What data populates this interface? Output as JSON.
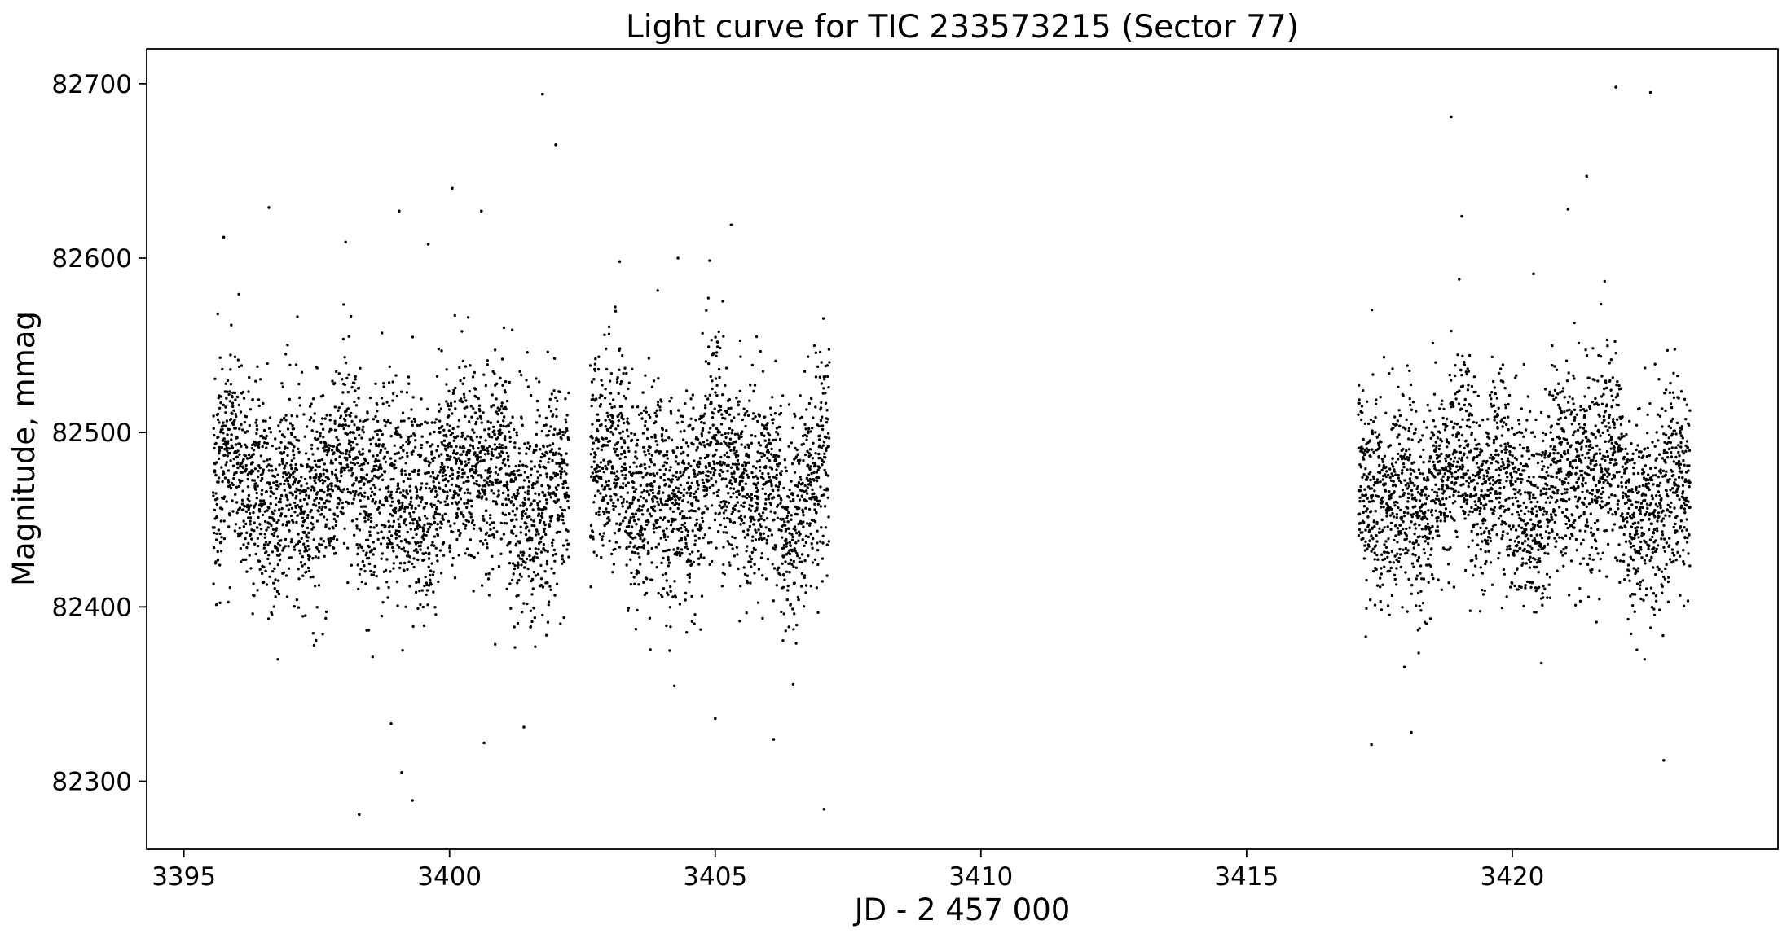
{
  "chart_data": {
    "type": "scatter",
    "title": "Light curve for TIC 233573215 (Sector 77)",
    "xlabel": "JD - 2 457 000",
    "ylabel": "Magnitude, mmag",
    "xlim": [
      3394.3,
      3425.0
    ],
    "ylim": [
      82261,
      82720
    ],
    "xticks": [
      3395,
      3400,
      3405,
      3410,
      3415,
      3420
    ],
    "xtick_labels": [
      "3395",
      "3400",
      "3405",
      "3410",
      "3415",
      "3420"
    ],
    "yticks": [
      82300,
      82400,
      82500,
      82600,
      82700
    ],
    "ytick_labels": [
      "82300",
      "82400",
      "82500",
      "82600",
      "82700"
    ],
    "grid": false,
    "legend": false,
    "marker_color": "#000000",
    "series": [
      {
        "segments": [
          {
            "x_start": 3395.55,
            "x_end": 3402.25
          },
          {
            "x_start": 3402.65,
            "x_end": 3407.15
          },
          {
            "x_start": 3417.1,
            "x_end": 3423.35
          }
        ],
        "typical_range": [
          82400,
          82560
        ],
        "median": 82470
      }
    ],
    "outliers": [
      {
        "x": 3396.6,
        "y": 82629
      },
      {
        "x": 3395.75,
        "y": 82612
      },
      {
        "x": 3398.3,
        "y": 82281
      },
      {
        "x": 3399.1,
        "y": 82305
      },
      {
        "x": 3399.3,
        "y": 82289
      },
      {
        "x": 3400.05,
        "y": 82640
      },
      {
        "x": 3400.6,
        "y": 82627
      },
      {
        "x": 3401.75,
        "y": 82694
      },
      {
        "x": 3402.0,
        "y": 82665
      },
      {
        "x": 3399.05,
        "y": 82627
      },
      {
        "x": 3400.65,
        "y": 82322
      },
      {
        "x": 3407.05,
        "y": 82284
      },
      {
        "x": 3405.3,
        "y": 82619
      },
      {
        "x": 3418.85,
        "y": 82681
      },
      {
        "x": 3421.95,
        "y": 82698
      },
      {
        "x": 3422.6,
        "y": 82695
      },
      {
        "x": 3421.4,
        "y": 82647
      },
      {
        "x": 3421.05,
        "y": 82628
      },
      {
        "x": 3422.85,
        "y": 82312
      },
      {
        "x": 3417.35,
        "y": 82321
      },
      {
        "x": 3418.1,
        "y": 82328
      },
      {
        "x": 3406.1,
        "y": 82324
      },
      {
        "x": 3405.0,
        "y": 82336
      },
      {
        "x": 3398.9,
        "y": 82333
      },
      {
        "x": 3401.4,
        "y": 82331
      },
      {
        "x": 3420.4,
        "y": 82591
      },
      {
        "x": 3419.05,
        "y": 82624
      },
      {
        "x": 3399.6,
        "y": 82608
      },
      {
        "x": 3403.2,
        "y": 82598
      },
      {
        "x": 3404.3,
        "y": 82600
      }
    ]
  }
}
